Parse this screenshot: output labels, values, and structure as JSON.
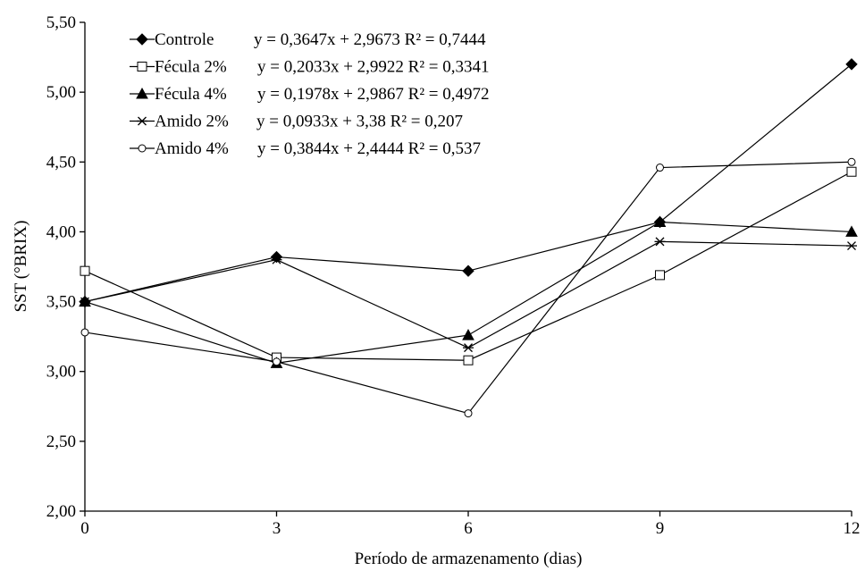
{
  "chart_data": {
    "type": "line",
    "title": "",
    "xlabel": "Período de armazenamento (dias)",
    "ylabel": "SST (°BRIX)",
    "x": [
      0,
      3,
      6,
      9,
      12
    ],
    "x_tick_labels": [
      "0",
      "3",
      "6",
      "9",
      "12"
    ],
    "xlim": [
      0,
      12
    ],
    "ylim": [
      2.0,
      5.5
    ],
    "y_ticks": [
      2.0,
      2.5,
      3.0,
      3.5,
      4.0,
      4.5,
      5.0,
      5.5
    ],
    "y_tick_labels": [
      "2,00",
      "2,50",
      "3,00",
      "3,50",
      "4,00",
      "4,50",
      "5,00",
      "5,50"
    ],
    "grid": false,
    "legend_position": "top-left",
    "series": [
      {
        "name": "Controle",
        "marker": "diamond-filled",
        "values": [
          3.5,
          3.82,
          3.72,
          4.07,
          5.2
        ],
        "equation": "y = 0,3647x + 2,9673 R² = 0,7444"
      },
      {
        "name": "Fécula 2%",
        "marker": "square-open",
        "values": [
          3.72,
          3.1,
          3.08,
          3.69,
          4.43
        ],
        "equation": "y = 0,2033x + 2,9922 R² = 0,3341"
      },
      {
        "name": "Fécula 4%",
        "marker": "triangle-filled",
        "values": [
          3.5,
          3.06,
          3.26,
          4.07,
          4.0
        ],
        "equation": "y = 0,1978x + 2,9867 R² = 0,4972"
      },
      {
        "name": "Amido 2%",
        "marker": "asterisk",
        "values": [
          3.5,
          3.8,
          3.17,
          3.93,
          3.9
        ],
        "equation": "y = 0,0933x + 3,38 R² = 0,207"
      },
      {
        "name": "Amido 4%",
        "marker": "circle-open",
        "values": [
          3.28,
          3.07,
          2.7,
          4.46,
          4.5
        ],
        "equation": "y = 0,3844x + 2,4444 R² = 0,537"
      }
    ]
  }
}
